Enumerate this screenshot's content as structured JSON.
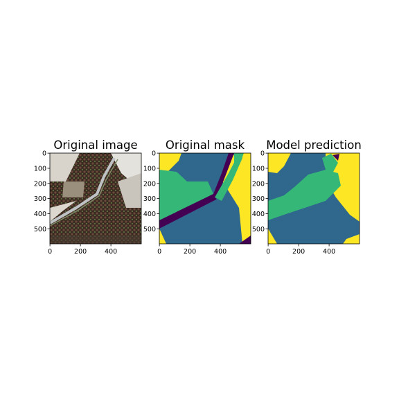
{
  "panels": [
    {
      "title": "Original image",
      "x_ticks": [
        "0",
        "200",
        "400"
      ],
      "y_ticks": [
        "0",
        "100",
        "200",
        "300",
        "400",
        "500"
      ],
      "kind": "aerial-photo"
    },
    {
      "title": "Original mask",
      "x_ticks": [
        "0",
        "200",
        "400"
      ],
      "y_ticks": [
        "0",
        "100",
        "200",
        "300",
        "400",
        "500"
      ],
      "kind": "segmentation-mask"
    },
    {
      "title": "Model prediction",
      "x_ticks": [
        "0",
        "200",
        "400"
      ],
      "y_ticks": [
        "0",
        "100",
        "200",
        "300",
        "400",
        "500"
      ],
      "kind": "segmentation-mask"
    }
  ],
  "colors": {
    "class_0": "#440154",
    "class_1": "#30678d",
    "class_2": "#35b778",
    "class_3": "#fde724"
  },
  "chart_data": {
    "type": "heatmap",
    "title": "",
    "xlim": [
      0,
      599
    ],
    "ylim": [
      599,
      0
    ],
    "grid": false,
    "legend": "none"
  }
}
